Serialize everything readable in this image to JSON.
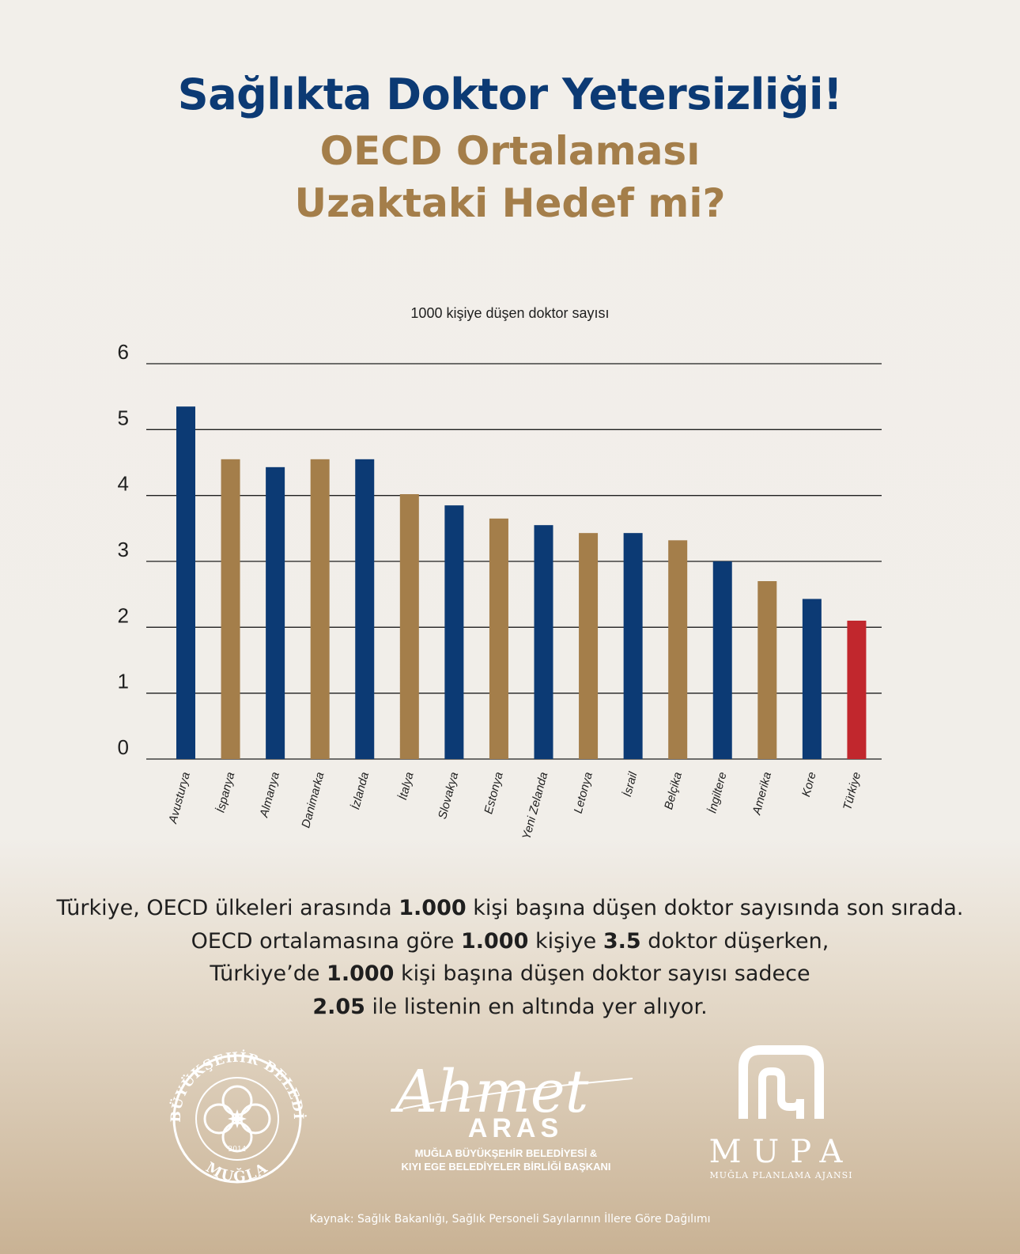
{
  "header": {
    "title_line1": "Sağlıkta Doktor Yetersizliği!",
    "title_line2": "OECD Ortalaması",
    "title_line3": "Uzaktaki Hedef mi?"
  },
  "chart_data": {
    "type": "bar",
    "title": "1000 kişiye düşen doktor sayısı",
    "categories": [
      "Avusturya",
      "İspanya",
      "Almanya",
      "Danimarka",
      "İzlanda",
      "İtalya",
      "Slovakya",
      "Estonya",
      "Yeni Zelanda",
      "Letonya",
      "İsrail",
      "Belçika",
      "İngiltere",
      "Amerika",
      "Kore",
      "Türkiye"
    ],
    "values": [
      5.35,
      4.55,
      4.43,
      4.55,
      4.55,
      4.02,
      3.85,
      3.65,
      3.55,
      3.43,
      3.43,
      3.32,
      3.0,
      2.7,
      2.43,
      2.1
    ],
    "bar_colors": [
      "#0c3a74",
      "#a47e4a",
      "#0c3a74",
      "#a47e4a",
      "#0c3a74",
      "#a47e4a",
      "#0c3a74",
      "#a47e4a",
      "#0c3a74",
      "#a47e4a",
      "#0c3a74",
      "#a47e4a",
      "#0c3a74",
      "#a47e4a",
      "#0c3a74",
      "#c1272d"
    ],
    "yticks": [
      0,
      1,
      2,
      3,
      4,
      5,
      6
    ],
    "ylim": [
      0,
      6
    ],
    "grid": true,
    "xlabel": "",
    "ylabel": ""
  },
  "description": {
    "line1": {
      "a": "Türkiye, OECD ülkeleri arasında ",
      "b": "1.000",
      "c": " kişi başına düşen doktor sayısında son sırada."
    },
    "line2": {
      "a": "OECD ortalamasına göre ",
      "b": "1.000",
      "c": " kişiye ",
      "d": "3.5",
      "e": " doktor düşerken,"
    },
    "line3": {
      "a": "Türkiye’de ",
      "b": "1.000",
      "c": " kişi başına düşen doktor sayısı sadece"
    },
    "line4": {
      "a": "2.05",
      "b": " ile listenin en altında yer alıyor."
    }
  },
  "logos": {
    "muncipality_seal_top": "T.C. BÜYÜKŞEHİR BELEDİYESİ",
    "muncipality_seal_year": "2014",
    "muncipality_seal_bottom": "MUĞLA",
    "signature_name": "Ahmet",
    "signature_surname": "ARAS",
    "signature_title_line1": "MUĞLA BÜYÜKŞEHİR BELEDİYESİ &",
    "signature_title_line2": "KIYI EGE BELEDİYELER BİRLİĞİ BAŞKANI",
    "agency_name": "MUPA",
    "agency_full_name": "MUĞLA PLANLAMA AJANSI"
  },
  "footer": {
    "source": "Kaynak: Sağlık Bakanlığı, Sağlık Personeli Sayılarının İllere Göre Dağılımı"
  },
  "colors": {
    "navy": "#0c3a74",
    "gold": "#a47e4a",
    "red": "#c1272d"
  }
}
